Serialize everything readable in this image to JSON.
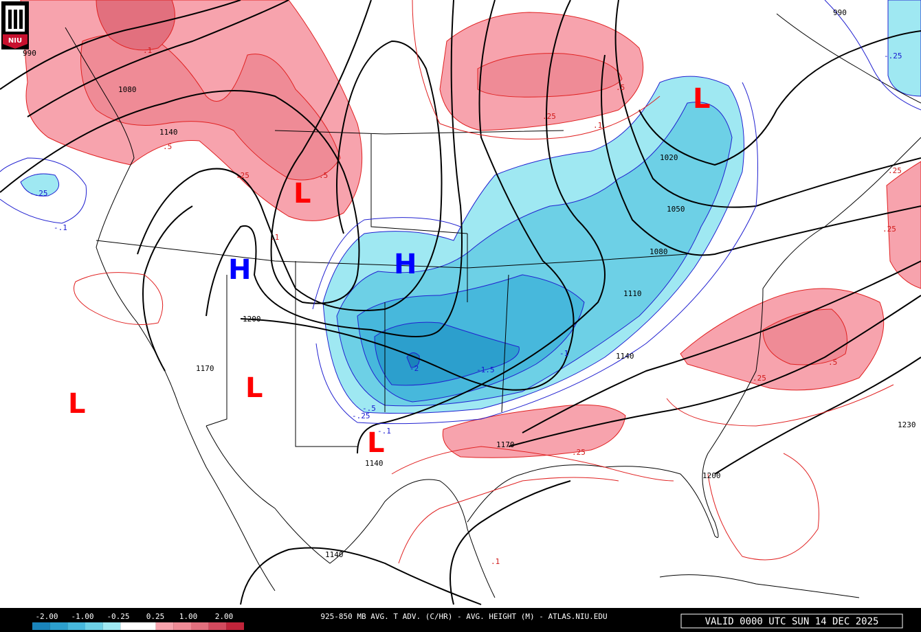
{
  "logo": "NIU",
  "footer": {
    "title": "925-850 MB AVG. T ADV. (C/HR) - AVG. HEIGHT (M) - ATLAS.NIU.EDU",
    "valid": "VALID 0000 UTC SUN 14 DEC 2025"
  },
  "legend": {
    "labels": [
      "-2.00",
      "-1.00",
      "-0.25",
      "0.25",
      "1.00",
      "2.00"
    ],
    "colors": [
      "#1a84bb",
      "#2c9fcd",
      "#47b8dc",
      "#6dd0e6",
      "#9fe8f2",
      "#ffffff",
      "#ffffff",
      "#f7a3ad",
      "#ef8b96",
      "#e2707e",
      "#d24a5e",
      "#c0243a"
    ]
  },
  "height_labels": [
    "990",
    "990",
    "1080",
    "1140",
    "1020",
    "1050",
    "1080",
    "1110",
    "1140",
    "1140",
    "1140",
    "1170",
    "1170",
    "1200",
    "1200",
    "1230"
  ],
  "advection_labels": [
    ".1",
    ".5",
    ".25",
    ".5",
    ".25",
    ".1",
    ".5",
    ".25",
    ".5",
    ".25",
    ".25",
    ".25",
    ".1",
    ".1",
    "-.25",
    "-.1",
    "-2",
    "-1.5",
    "-1",
    "-.5",
    "-.25",
    "-.1",
    "-.25"
  ],
  "centers": [
    "L",
    "L",
    "L",
    "L",
    "L",
    "H",
    "H"
  ]
}
